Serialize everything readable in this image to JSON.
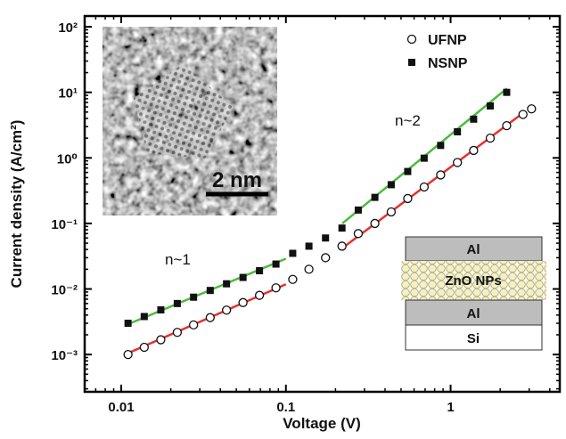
{
  "chart_data": {
    "type": "scatter",
    "x_label": "Voltage (V)",
    "y_label": "Current density (A/cm²)",
    "log_x": true,
    "log_y": true,
    "xlim": [
      0.006,
      4.6
    ],
    "ylim": [
      0.00027,
      146
    ],
    "xticks": [
      0.01,
      0.1,
      1
    ],
    "yticks": [
      {
        "value": 0.001,
        "label": "10⁻³"
      },
      {
        "value": 0.01,
        "label": "10⁻²"
      },
      {
        "value": 0.1,
        "label": "10⁻¹"
      },
      {
        "value": 1,
        "label": "10⁰"
      },
      {
        "value": 10,
        "label": "10¹"
      },
      {
        "value": 100,
        "label": "10²"
      }
    ],
    "legend_position": "upper right",
    "series": [
      {
        "name": "UFNP",
        "marker": "circle",
        "color": "#111111",
        "x": [
          0.011,
          0.0138,
          0.0174,
          0.0219,
          0.0275,
          0.0347,
          0.0436,
          0.0549,
          0.0691,
          0.087,
          0.11,
          0.138,
          0.174,
          0.219,
          0.275,
          0.347,
          0.436,
          0.549,
          0.691,
          0.87,
          1.1,
          1.38,
          1.74,
          2.19,
          2.75,
          3.1
        ],
        "values": [
          0.001,
          0.00129,
          0.00168,
          0.00218,
          0.00283,
          0.00366,
          0.00476,
          0.0062,
          0.008,
          0.0104,
          0.014,
          0.02,
          0.03,
          0.045,
          0.07,
          0.1,
          0.15,
          0.24,
          0.36,
          0.55,
          0.85,
          1.3,
          2.0,
          3.1,
          4.6,
          5.6
        ]
      },
      {
        "name": "NSNP",
        "marker": "square",
        "color": "#111111",
        "x": [
          0.011,
          0.0138,
          0.0174,
          0.0219,
          0.0275,
          0.0347,
          0.0436,
          0.0549,
          0.0691,
          0.087,
          0.11,
          0.138,
          0.174,
          0.219,
          0.275,
          0.347,
          0.436,
          0.549,
          0.691,
          0.87,
          1.1,
          1.38,
          1.74,
          2.19
        ],
        "values": [
          0.003,
          0.0038,
          0.0048,
          0.006,
          0.0075,
          0.0095,
          0.012,
          0.015,
          0.019,
          0.024,
          0.035,
          0.045,
          0.06,
          0.085,
          0.16,
          0.25,
          0.39,
          0.62,
          0.99,
          1.55,
          2.5,
          3.9,
          6.2,
          10
        ]
      }
    ],
    "lines": [
      {
        "color": "#e8312a",
        "x": [
          0.011,
          0.1
        ],
        "values": [
          0.00105,
          0.0118
        ]
      },
      {
        "color": "#e8312a",
        "x": [
          0.22,
          2.8
        ],
        "values": [
          0.042,
          5.0
        ]
      },
      {
        "color": "#4cbb3c",
        "x": [
          0.011,
          0.1
        ],
        "values": [
          0.0029,
          0.029
        ]
      },
      {
        "color": "#4cbb3c",
        "x": [
          0.22,
          2.2
        ],
        "values": [
          0.1,
          11.5
        ]
      }
    ],
    "annotations": [
      "n~1",
      "n~2"
    ],
    "inset_image": {
      "scale_bar": "2 nm"
    },
    "inset_schematic": {
      "layers": [
        "Al",
        "ZnO NPs",
        "Al",
        "Si"
      ]
    }
  }
}
